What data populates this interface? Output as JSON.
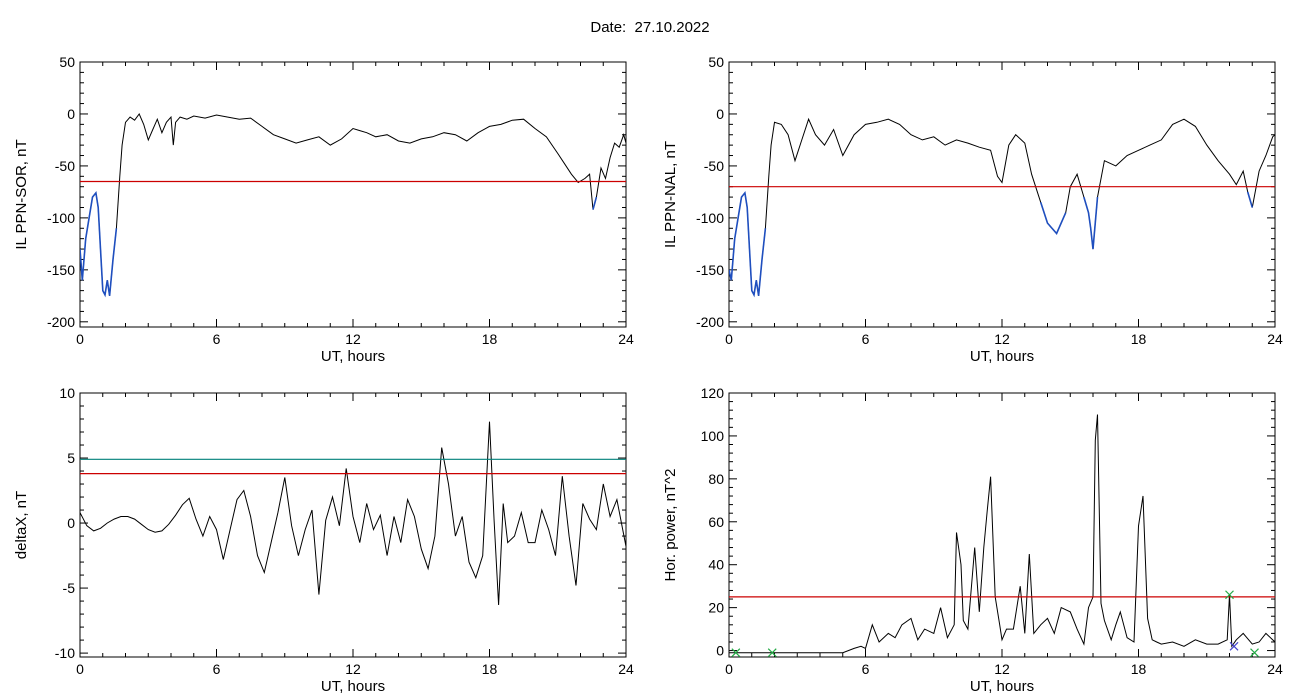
{
  "header": {
    "date_label": "Date:  27.10.2022"
  },
  "colors": {
    "trace": "#000000",
    "threshold": "#cc0000",
    "highlight": "#1f4fbf",
    "upper_threshold": "#00807a",
    "marker": "#22aa44",
    "marker_alt": "#4444cc"
  },
  "chart_data": [
    {
      "type": "line",
      "panel": "top-left",
      "ylabel": "IL PPN-SOR, nT",
      "xlabel": "UT, hours",
      "xlim": [
        0,
        24
      ],
      "ylim": [
        -205,
        50
      ],
      "xticks": [
        0,
        6,
        12,
        18,
        24
      ],
      "yticks": [
        50,
        0,
        -50,
        -100,
        -150,
        -200
      ],
      "threshold": -65,
      "highlight_below_threshold": true,
      "series": [
        {
          "x": [
            0,
            0.1,
            0.25,
            0.4,
            0.55,
            0.7,
            0.8,
            0.9,
            1.0,
            1.1,
            1.2,
            1.3,
            1.45,
            1.6,
            1.75,
            1.85,
            2.0,
            2.2,
            2.4,
            2.6,
            2.8,
            3.0,
            3.2,
            3.4,
            3.6,
            3.8,
            4.0,
            4.1,
            4.2,
            4.4,
            4.7,
            5.0,
            5.5,
            6.0,
            6.5,
            7.0,
            7.5,
            8.0,
            8.5,
            9.0,
            9.5,
            10.0,
            10.5,
            11.0,
            11.5,
            12.0,
            12.3,
            12.6,
            13.0,
            13.5,
            14.0,
            14.5,
            15.0,
            15.5,
            16.0,
            16.5,
            17.0,
            17.5,
            18.0,
            18.5,
            19.0,
            19.5,
            20.0,
            20.5,
            21.0,
            21.3,
            21.6,
            21.9,
            22.2,
            22.4,
            22.55,
            22.7,
            22.9,
            23.1,
            23.3,
            23.5,
            23.7,
            23.9,
            24.0
          ],
          "y": [
            -130,
            -160,
            -120,
            -100,
            -80,
            -76,
            -90,
            -130,
            -170,
            -174,
            -160,
            -175,
            -140,
            -110,
            -60,
            -30,
            -8,
            -3,
            -6,
            0,
            -10,
            -25,
            -15,
            -5,
            -18,
            -8,
            -3,
            -30,
            -8,
            -3,
            -5,
            -2,
            -4,
            -1,
            -3,
            -5,
            -4,
            -12,
            -20,
            -24,
            -28,
            -25,
            -22,
            -30,
            -24,
            -14,
            -16,
            -18,
            -22,
            -20,
            -26,
            -28,
            -24,
            -22,
            -18,
            -20,
            -26,
            -18,
            -12,
            -10,
            -6,
            -5,
            -14,
            -22,
            -38,
            -48,
            -58,
            -66,
            -62,
            -58,
            -92,
            -80,
            -52,
            -62,
            -42,
            -28,
            -32,
            -20,
            -28
          ]
        }
      ]
    },
    {
      "type": "line",
      "panel": "top-right",
      "ylabel": "IL PPN-NAL, nT",
      "xlabel": "UT, hours",
      "xlim": [
        0,
        24
      ],
      "ylim": [
        -205,
        50
      ],
      "xticks": [
        0,
        6,
        12,
        18,
        24
      ],
      "yticks": [
        50,
        0,
        -50,
        -100,
        -150,
        -200
      ],
      "threshold": -70,
      "highlight_below_threshold": true,
      "series": [
        {
          "x": [
            0,
            0.1,
            0.25,
            0.4,
            0.55,
            0.7,
            0.8,
            0.9,
            1.0,
            1.1,
            1.2,
            1.3,
            1.45,
            1.6,
            1.75,
            1.85,
            2.0,
            2.3,
            2.6,
            2.9,
            3.2,
            3.5,
            3.8,
            4.2,
            4.6,
            5.0,
            5.5,
            6.0,
            6.5,
            7.0,
            7.5,
            8.0,
            8.5,
            9.0,
            9.5,
            10.0,
            10.5,
            11.0,
            11.5,
            11.8,
            12.0,
            12.3,
            12.6,
            13.0,
            13.3,
            13.7,
            14.0,
            14.4,
            14.8,
            15.0,
            15.3,
            15.6,
            15.8,
            15.9,
            16.0,
            16.2,
            16.5,
            17.0,
            17.5,
            18.0,
            18.5,
            19.0,
            19.5,
            20.0,
            20.5,
            21.0,
            21.5,
            22.0,
            22.3,
            22.6,
            22.8,
            23.0,
            23.3,
            23.6,
            23.9,
            24.0
          ],
          "y": [
            -150,
            -160,
            -120,
            -100,
            -80,
            -76,
            -90,
            -130,
            -170,
            -174,
            -160,
            -175,
            -140,
            -110,
            -60,
            -30,
            -8,
            -10,
            -20,
            -45,
            -25,
            -5,
            -20,
            -30,
            -15,
            -40,
            -20,
            -10,
            -8,
            -5,
            -10,
            -20,
            -25,
            -22,
            -30,
            -25,
            -28,
            -32,
            -35,
            -60,
            -66,
            -30,
            -20,
            -28,
            -58,
            -85,
            -105,
            -115,
            -95,
            -70,
            -58,
            -80,
            -95,
            -110,
            -130,
            -80,
            -45,
            -50,
            -40,
            -35,
            -30,
            -25,
            -10,
            -5,
            -12,
            -30,
            -45,
            -58,
            -68,
            -55,
            -75,
            -90,
            -55,
            -40,
            -22,
            -20
          ]
        }
      ]
    },
    {
      "type": "line",
      "panel": "bottom-left",
      "ylabel": "deltaX, nT",
      "xlabel": "UT, hours",
      "xlim": [
        0,
        24
      ],
      "ylim": [
        -10.3,
        10
      ],
      "xticks": [
        0,
        6,
        12,
        18,
        24
      ],
      "yticks": [
        10,
        5,
        0,
        -5,
        -10
      ],
      "threshold": 3.8,
      "upper_threshold": 4.9,
      "series": [
        {
          "x": [
            0,
            0.3,
            0.6,
            0.9,
            1.2,
            1.5,
            1.8,
            2.1,
            2.4,
            2.7,
            3.0,
            3.3,
            3.6,
            3.9,
            4.2,
            4.5,
            4.8,
            5.1,
            5.4,
            5.7,
            6.0,
            6.3,
            6.6,
            6.9,
            7.2,
            7.5,
            7.8,
            8.1,
            8.4,
            8.7,
            9.0,
            9.3,
            9.6,
            9.9,
            10.2,
            10.5,
            10.8,
            11.1,
            11.4,
            11.7,
            12.0,
            12.3,
            12.6,
            12.9,
            13.2,
            13.5,
            13.8,
            14.1,
            14.4,
            14.7,
            15.0,
            15.3,
            15.6,
            15.9,
            16.2,
            16.5,
            16.8,
            17.1,
            17.4,
            17.7,
            18.0,
            18.2,
            18.4,
            18.6,
            18.8,
            19.1,
            19.4,
            19.7,
            20.0,
            20.3,
            20.6,
            20.9,
            21.2,
            21.5,
            21.8,
            22.1,
            22.4,
            22.7,
            23.0,
            23.3,
            23.6,
            24.0
          ],
          "y": [
            0.8,
            -0.2,
            -0.6,
            -0.4,
            0.0,
            0.3,
            0.5,
            0.5,
            0.3,
            -0.1,
            -0.5,
            -0.7,
            -0.6,
            -0.1,
            0.6,
            1.4,
            1.9,
            0.3,
            -1.0,
            0.5,
            -0.5,
            -2.8,
            -0.5,
            1.8,
            2.5,
            0.5,
            -2.5,
            -3.8,
            -1.5,
            0.8,
            3.5,
            -0.2,
            -2.5,
            -0.5,
            1.0,
            -5.5,
            0.2,
            2.0,
            -0.2,
            4.2,
            0.5,
            -1.5,
            1.5,
            -0.5,
            0.6,
            -2.5,
            0.5,
            -1.5,
            1.8,
            0.5,
            -2.0,
            -3.5,
            -1.0,
            5.8,
            3.0,
            -1.0,
            0.5,
            -3.0,
            -4.2,
            -2.5,
            7.8,
            0.2,
            -6.3,
            1.5,
            -1.5,
            -1.0,
            0.8,
            -1.5,
            -1.5,
            1.0,
            -0.5,
            -2.5,
            3.6,
            -1.0,
            -4.8,
            1.5,
            0.3,
            -0.5,
            3.0,
            0.5,
            1.8,
            -1.8
          ]
        }
      ]
    },
    {
      "type": "line",
      "panel": "bottom-right",
      "ylabel": "Hor. power, nT^2",
      "xlabel": "UT, hours",
      "xlim": [
        0,
        24
      ],
      "ylim": [
        -3,
        120
      ],
      "xticks": [
        0,
        6,
        12,
        18,
        24
      ],
      "yticks": [
        120,
        100,
        80,
        60,
        40,
        20,
        0
      ],
      "threshold": 25,
      "markers": [
        {
          "x": 0.3,
          "y": -1,
          "color": "green"
        },
        {
          "x": 1.9,
          "y": -1,
          "color": "green"
        },
        {
          "x": 22.0,
          "y": 26,
          "color": "green"
        },
        {
          "x": 22.2,
          "y": 2,
          "color": "blue"
        },
        {
          "x": 23.1,
          "y": -1,
          "color": "green"
        }
      ],
      "series": [
        {
          "x": [
            0,
            2,
            3,
            4,
            5,
            5.5,
            5.8,
            6.0,
            6.3,
            6.6,
            7.0,
            7.3,
            7.6,
            8.0,
            8.3,
            8.6,
            9.0,
            9.3,
            9.6,
            9.9,
            10.0,
            10.2,
            10.3,
            10.5,
            10.8,
            11.0,
            11.2,
            11.35,
            11.5,
            11.7,
            11.9,
            12.0,
            12.2,
            12.5,
            12.8,
            13.0,
            13.2,
            13.4,
            13.7,
            14.0,
            14.3,
            14.6,
            15.0,
            15.3,
            15.6,
            15.8,
            16.0,
            16.1,
            16.2,
            16.35,
            16.5,
            16.8,
            17.0,
            17.2,
            17.5,
            17.8,
            18.0,
            18.2,
            18.4,
            18.6,
            18.8,
            19.0,
            19.5,
            20.0,
            20.5,
            21.0,
            21.5,
            21.9,
            22.0,
            22.1,
            22.3,
            22.6,
            23.0,
            23.3,
            23.6,
            24.0
          ],
          "y": [
            -1,
            -1,
            -1,
            -1,
            -1,
            1,
            2,
            1,
            12,
            4,
            8,
            6,
            12,
            15,
            5,
            10,
            8,
            20,
            6,
            12,
            55,
            40,
            14,
            10,
            48,
            18,
            48,
            65,
            81,
            25,
            12,
            5,
            10,
            10,
            30,
            8,
            45,
            8,
            12,
            15,
            8,
            20,
            18,
            10,
            3,
            20,
            25,
            98,
            110,
            22,
            14,
            5,
            12,
            18,
            6,
            4,
            58,
            72,
            15,
            5,
            4,
            3,
            4,
            2,
            5,
            3,
            3,
            5,
            26,
            2,
            5,
            8,
            3,
            4,
            8,
            4
          ]
        }
      ]
    }
  ]
}
